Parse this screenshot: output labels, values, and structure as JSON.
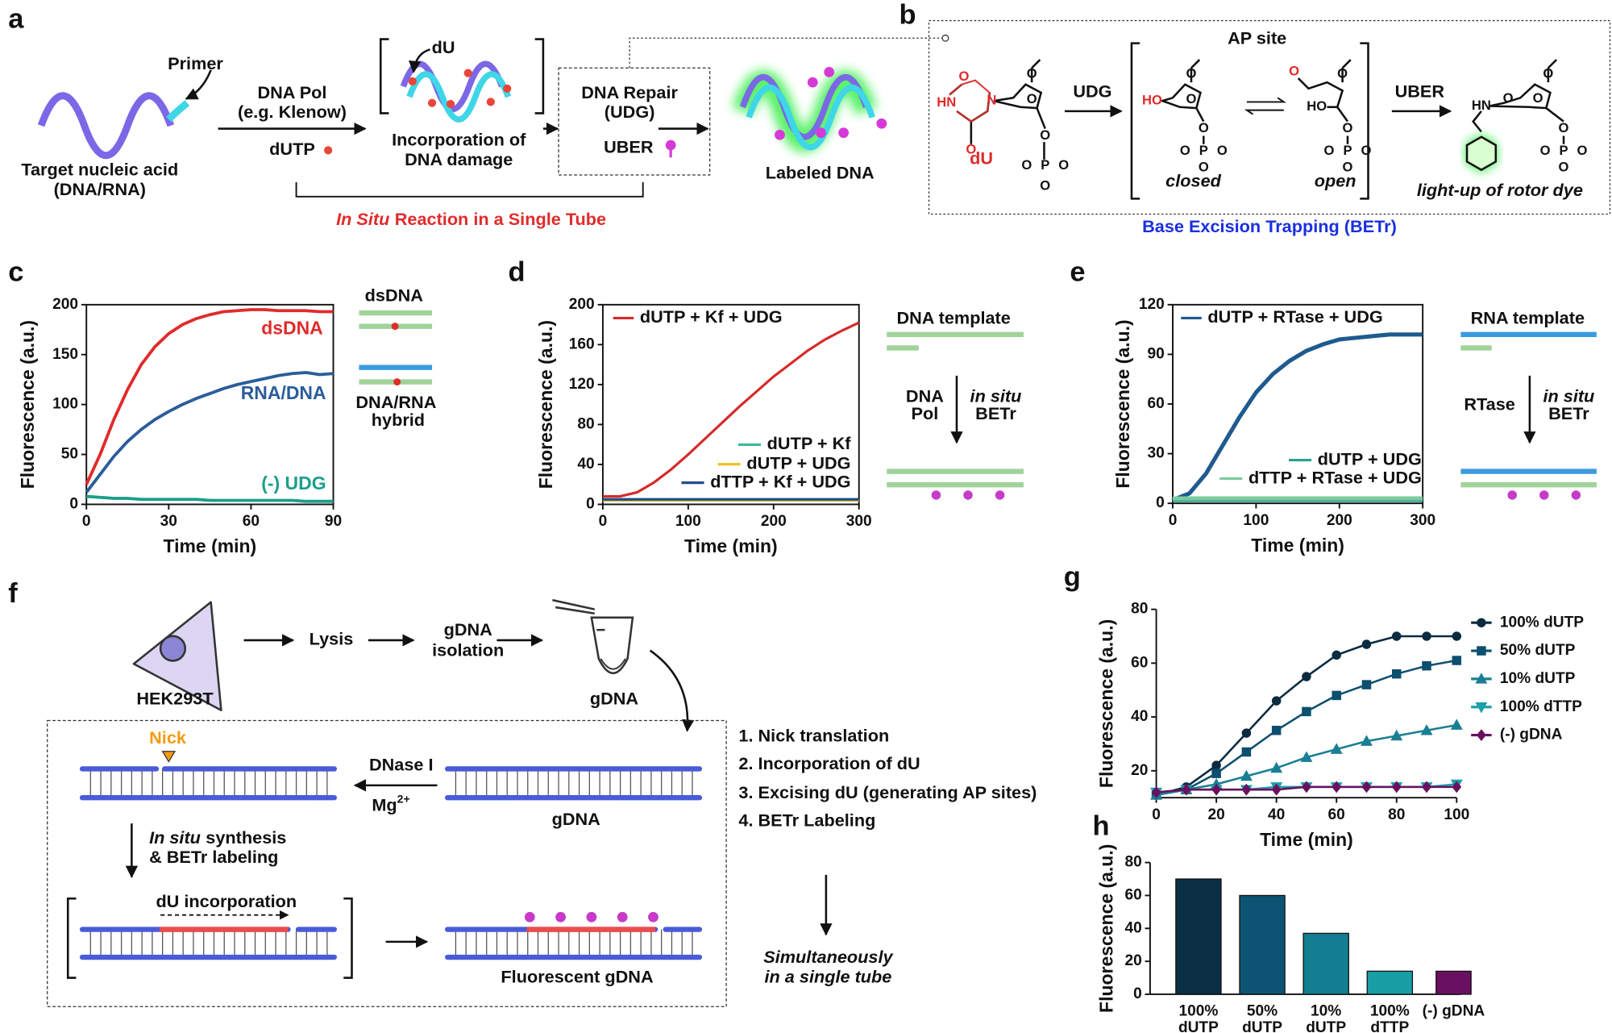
{
  "panel_labels": [
    "a",
    "b",
    "c",
    "d",
    "e",
    "f",
    "g",
    "h"
  ],
  "panel_a": {
    "primer": "Primer",
    "target": [
      "Target nucleic acid",
      "(DNA/RNA)"
    ],
    "pol": [
      "DNA Pol",
      "(e.g. Klenow)"
    ],
    "dutp": "dUTP",
    "du": "dU",
    "incorporation": [
      "Incorporation of",
      "DNA damage"
    ],
    "repair": [
      "DNA Repair",
      "(UDG)"
    ],
    "uber": "UBER",
    "labeled": "Labeled DNA",
    "in_situ": "In Situ",
    "reaction": "Reaction in a Single Tube"
  },
  "panel_b": {
    "ap_site": "AP site",
    "udg": "UDG",
    "uber": "UBER",
    "du": "dU",
    "closed": "closed",
    "open": "open",
    "dye": "light-up of rotor dye",
    "betr": "Base Excision Trapping (BETr)",
    "atoms": [
      "O",
      "HN",
      "N",
      "O",
      "O",
      "O",
      "O",
      "P",
      "O",
      "O",
      "O",
      "HO",
      "O",
      "O",
      "O",
      "P",
      "O",
      "O",
      "O",
      "O",
      "HO",
      "O",
      "O",
      "P",
      "O",
      "O",
      "O",
      "HN",
      "O",
      "O",
      "O",
      "O",
      "P",
      "O",
      "O",
      "O"
    ]
  },
  "panel_c_side": {
    "dsdna": "dsDNA",
    "hybrid": [
      "DNA/RNA",
      "hybrid"
    ]
  },
  "panel_d_side": {
    "template": "DNA template",
    "pol": [
      "DNA",
      "Pol"
    ],
    "in_situ": "in situ",
    "betr": "BETr"
  },
  "panel_e_side": {
    "template": "RNA template",
    "rtase": "RTase",
    "in_situ": "in situ",
    "betr": "BETr"
  },
  "panel_f": {
    "lysis": "Lysis",
    "isolation": [
      "gDNA",
      "isolation"
    ],
    "cell": "HEK293T",
    "tube": "gDNA",
    "nick": "Nick",
    "dnase": "DNase I",
    "mg": "Mg",
    "mg_charge": "2+",
    "gdna": "gDNA",
    "in_situ": "In situ",
    "synthesis": "synthesis",
    "betr_labeling": "& BETr labeling",
    "du_incorporation": "dU incorporation",
    "fluorescent": "Fluorescent gDNA",
    "steps": [
      "1. Nick translation",
      "2. Incorporation of dU",
      "3. Excising dU (generating AP sites)",
      "4. BETr Labeling"
    ],
    "simultaneously": [
      "Simultaneously",
      "in a single tube"
    ]
  },
  "chart_data": [
    {
      "type": "line",
      "x_label": "Time (min)",
      "y_label": "Fluorescence (a.u.)",
      "x": [
        0,
        5,
        10,
        15,
        20,
        25,
        30,
        35,
        40,
        45,
        50,
        55,
        60,
        65,
        70,
        75,
        80,
        85,
        90
      ],
      "xlim": [
        0,
        90
      ],
      "xticks": [
        0,
        30,
        60,
        90
      ],
      "ylim": [
        0,
        200
      ],
      "yticks": [
        0,
        50,
        100,
        150,
        200
      ],
      "series": [
        {
          "name": "dsDNA",
          "color": "#e02b2b",
          "values": [
            20,
            50,
            85,
            115,
            140,
            158,
            171,
            180,
            186,
            190,
            193,
            194,
            195,
            195,
            194,
            194,
            194,
            193,
            193
          ]
        },
        {
          "name": "RNA/DNA",
          "color": "#2a5d9a",
          "values": [
            12,
            30,
            48,
            63,
            75,
            85,
            93,
            100,
            106,
            111,
            116,
            120,
            123,
            126,
            129,
            131,
            132,
            130,
            131
          ]
        },
        {
          "name": "(-) UDG",
          "color": "#1b9e8a",
          "values": [
            8,
            7,
            6,
            6,
            5,
            5,
            5,
            5,
            5,
            4,
            4,
            4,
            4,
            4,
            4,
            4,
            3,
            3,
            3
          ]
        }
      ]
    },
    {
      "type": "line",
      "x_label": "Time (min)",
      "y_label": "Fluorescence (a.u.)",
      "x": [
        0,
        20,
        40,
        60,
        80,
        100,
        120,
        140,
        160,
        180,
        200,
        220,
        240,
        260,
        280,
        300
      ],
      "xlim": [
        0,
        300
      ],
      "xticks": [
        0,
        100,
        200,
        300
      ],
      "ylim": [
        0,
        200
      ],
      "yticks": [
        0,
        40,
        80,
        120,
        160,
        200
      ],
      "series": [
        {
          "name": "dUTP + Kf + UDG",
          "color": "#d42b2b",
          "values": [
            8,
            8,
            12,
            22,
            35,
            50,
            66,
            82,
            98,
            113,
            128,
            141,
            154,
            165,
            174,
            182
          ]
        },
        {
          "name": "dUTP + Kf",
          "color": "#3bb89c",
          "values": [
            4,
            4,
            4,
            4,
            4,
            4,
            4,
            4,
            4,
            4,
            4,
            4,
            4,
            4,
            4,
            4
          ]
        },
        {
          "name": "dUTP + UDG",
          "color": "#f0c020",
          "values": [
            4,
            4,
            4,
            4,
            4,
            4,
            4,
            4,
            4,
            4,
            4,
            4,
            4,
            4,
            4,
            4
          ]
        },
        {
          "name": "dTTP + Kf + UDG",
          "color": "#1f4e8c",
          "values": [
            5,
            5,
            5,
            5,
            5,
            5,
            5,
            5,
            5,
            5,
            5,
            5,
            5,
            5,
            5,
            5
          ]
        }
      ]
    },
    {
      "type": "line",
      "x_label": "Time (min)",
      "y_label": "Fluorescence (a.u.)",
      "x": [
        0,
        20,
        40,
        60,
        80,
        100,
        120,
        140,
        160,
        180,
        200,
        220,
        240,
        260,
        280,
        300
      ],
      "xlim": [
        0,
        300
      ],
      "xticks": [
        0,
        100,
        200,
        300
      ],
      "ylim": [
        0,
        120
      ],
      "yticks": [
        0,
        30,
        60,
        90,
        120
      ],
      "series": [
        {
          "name": "dUTP + RTase + UDG",
          "color": "#1f5a8f",
          "values": [
            2,
            6,
            18,
            35,
            52,
            67,
            78,
            86,
            92,
            96,
            99,
            100,
            101,
            102,
            102,
            102
          ]
        },
        {
          "name": "dUTP + UDG",
          "color": "#2aa28c",
          "values": [
            2,
            2,
            2,
            2,
            2,
            2,
            2,
            2,
            2,
            2,
            2,
            2,
            2,
            2,
            2,
            2
          ]
        },
        {
          "name": "dTTP + RTase + UDG",
          "color": "#7ccba0",
          "values": [
            3,
            3,
            3,
            3,
            3,
            3,
            3,
            3,
            3,
            3,
            3,
            3,
            3,
            3,
            3,
            3
          ]
        }
      ]
    },
    {
      "type": "line",
      "x_label": "Time (min)",
      "y_label": "Fluorescence (a.u.)",
      "x": [
        0,
        10,
        20,
        30,
        40,
        50,
        60,
        70,
        80,
        90,
        100
      ],
      "xlim": [
        0,
        100
      ],
      "xticks": [
        0,
        20,
        40,
        60,
        80,
        100
      ],
      "ylim": [
        10,
        80
      ],
      "yticks": [
        20,
        40,
        60,
        80
      ],
      "series": [
        {
          "name": "100% dUTP",
          "color": "#0b2b40",
          "marker": "circle",
          "values": [
            11,
            14,
            22,
            34,
            46,
            55,
            63,
            67,
            70,
            70,
            70
          ]
        },
        {
          "name": "50% dUTP",
          "color": "#0d4f6e",
          "marker": "square",
          "values": [
            11,
            13,
            19,
            27,
            35,
            42,
            48,
            52,
            56,
            59,
            61
          ]
        },
        {
          "name": "10% dUTP",
          "color": "#1a7f94",
          "marker": "triangle",
          "values": [
            11,
            13,
            15,
            18,
            21,
            25,
            28,
            31,
            33,
            35,
            37
          ]
        },
        {
          "name": "100% dTTP",
          "color": "#1aa0a8",
          "marker": "triangle-down",
          "values": [
            12,
            13,
            13,
            13,
            14,
            14,
            14,
            14,
            14,
            14,
            15
          ]
        },
        {
          "name": "(-) gDNA",
          "color": "#6a1060",
          "marker": "diamond",
          "values": [
            12,
            13,
            13,
            13,
            13,
            14,
            14,
            14,
            14,
            14,
            14
          ]
        }
      ]
    },
    {
      "type": "bar",
      "y_label": "Fluorescence (a.u.)",
      "categories": [
        [
          "100%",
          "dUTP"
        ],
        [
          "50%",
          "dUTP"
        ],
        [
          "10%",
          "dUTP"
        ],
        [
          "100%",
          "dTTP"
        ],
        [
          "(-) gDNA"
        ]
      ],
      "values": [
        70,
        60,
        37,
        14,
        14
      ],
      "colors": [
        "#0a2f45",
        "#0d5474",
        "#117f91",
        "#1a9ea6",
        "#6a1060"
      ],
      "ylim": [
        0,
        80
      ],
      "yticks": [
        0,
        20,
        40,
        60,
        80
      ]
    }
  ]
}
